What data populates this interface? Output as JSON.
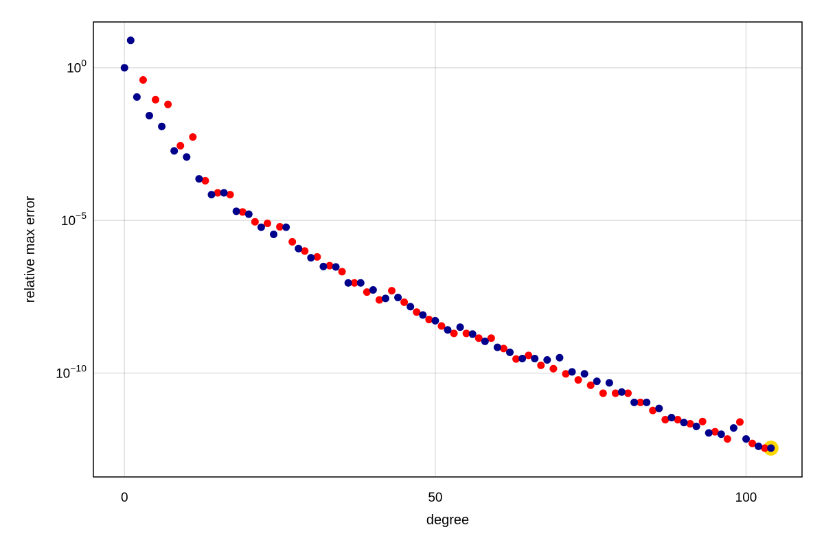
{
  "chart_data": {
    "type": "scatter",
    "xlabel": "degree",
    "ylabel": "relative max error",
    "xlim": [
      -5,
      109
    ],
    "ylim_log10": [
      -13.4,
      1.5
    ],
    "y_scale": "log10",
    "grid": true,
    "x_ticks": [
      {
        "value": 0,
        "label": "0"
      },
      {
        "value": 50,
        "label": "50"
      },
      {
        "value": 100,
        "label": "100"
      }
    ],
    "y_ticks": [
      {
        "value": 0,
        "base": "10",
        "exp": "0"
      },
      {
        "value": -5,
        "base": "10",
        "exp": "−5"
      },
      {
        "value": -10,
        "base": "10",
        "exp": "−10"
      }
    ],
    "colors": {
      "series_a": "#00008b",
      "series_b": "#ff0000",
      "highlight": "#ffd700"
    },
    "series": [
      {
        "color": "#00008b",
        "points": [
          [
            0,
            1.0
          ],
          [
            1,
            7.9
          ],
          [
            2,
            0.11
          ],
          [
            4,
            0.027
          ],
          [
            6,
            0.012
          ],
          [
            8,
            0.0019
          ],
          [
            10,
            0.0012
          ],
          [
            12,
            0.00023
          ],
          [
            14,
            7e-05
          ],
          [
            16,
            8e-05
          ],
          [
            18,
            2e-05
          ],
          [
            20,
            1.6e-05
          ],
          [
            22,
            6e-06
          ],
          [
            24,
            3.5e-06
          ],
          [
            26,
            6e-06
          ],
          [
            28,
            1.2e-06
          ],
          [
            30,
            6e-07
          ],
          [
            32,
            3.1e-07
          ],
          [
            34,
            3e-07
          ],
          [
            36,
            9e-08
          ],
          [
            38,
            9e-08
          ],
          [
            40,
            5.3e-08
          ],
          [
            42,
            2.8e-08
          ],
          [
            44,
            3e-08
          ],
          [
            46,
            1.5e-08
          ],
          [
            48,
            8e-09
          ],
          [
            50,
            5.2e-09
          ],
          [
            52,
            2.6e-09
          ],
          [
            54,
            3.2e-09
          ],
          [
            56,
            1.9e-09
          ],
          [
            58,
            1.1e-09
          ],
          [
            60,
            7e-10
          ],
          [
            62,
            4.8e-10
          ],
          [
            64,
            3e-10
          ],
          [
            66,
            3e-10
          ],
          [
            68,
            2.7e-10
          ],
          [
            70,
            3.2e-10
          ],
          [
            72,
            1.1e-10
          ],
          [
            74,
            9.5e-11
          ],
          [
            76,
            5.4e-11
          ],
          [
            78,
            4.8e-11
          ],
          [
            80,
            2.4e-11
          ],
          [
            82,
            1.1e-11
          ],
          [
            84,
            1.1e-11
          ],
          [
            86,
            7e-12
          ],
          [
            88,
            3.5e-12
          ],
          [
            90,
            2.4e-12
          ],
          [
            92,
            1.8e-12
          ],
          [
            94,
            1.1e-12
          ],
          [
            96,
            1e-12
          ],
          [
            98,
            1.6e-12
          ],
          [
            100,
            7e-13
          ],
          [
            102,
            4e-13
          ],
          [
            104,
            3.5e-13
          ]
        ]
      },
      {
        "color": "#ff0000",
        "points": [
          [
            3,
            0.4
          ],
          [
            5,
            0.09
          ],
          [
            7,
            0.063
          ],
          [
            9,
            0.0028
          ],
          [
            11,
            0.0054
          ],
          [
            13,
            0.0002
          ],
          [
            15,
            8e-05
          ],
          [
            17,
            7e-05
          ],
          [
            19,
            1.9e-05
          ],
          [
            21,
            9e-06
          ],
          [
            23,
            8e-06
          ],
          [
            25,
            6.2e-06
          ],
          [
            27,
            2e-06
          ],
          [
            29,
            1e-06
          ],
          [
            31,
            6.4e-07
          ],
          [
            33,
            3.3e-07
          ],
          [
            35,
            2.1e-07
          ],
          [
            37,
            9e-08
          ],
          [
            39,
            4.5e-08
          ],
          [
            41,
            2.5e-08
          ],
          [
            43,
            5e-08
          ],
          [
            45,
            2.1e-08
          ],
          [
            47,
            1e-08
          ],
          [
            49,
            5.7e-09
          ],
          [
            51,
            3.5e-09
          ],
          [
            53,
            2e-09
          ],
          [
            55,
            2e-09
          ],
          [
            57,
            1.4e-09
          ],
          [
            59,
            1.4e-09
          ],
          [
            61,
            6.4e-10
          ],
          [
            63,
            2.9e-10
          ],
          [
            65,
            3.8e-10
          ],
          [
            67,
            1.8e-10
          ],
          [
            69,
            1.4e-10
          ],
          [
            71,
            9.5e-11
          ],
          [
            73,
            6e-11
          ],
          [
            75,
            4e-11
          ],
          [
            77,
            2.2e-11
          ],
          [
            79,
            2.2e-11
          ],
          [
            81,
            2.2e-11
          ],
          [
            83,
            1.1e-11
          ],
          [
            85,
            6e-12
          ],
          [
            87,
            3e-12
          ],
          [
            89,
            3e-12
          ],
          [
            91,
            2.2e-12
          ],
          [
            93,
            2.6e-12
          ],
          [
            95,
            1.2e-12
          ],
          [
            97,
            7e-13
          ],
          [
            99,
            2.5e-12
          ],
          [
            101,
            5e-13
          ],
          [
            103,
            3.5e-13
          ]
        ]
      }
    ],
    "highlight_point": {
      "x": 104,
      "y": 3.5e-13,
      "color": "#ffd700"
    }
  }
}
